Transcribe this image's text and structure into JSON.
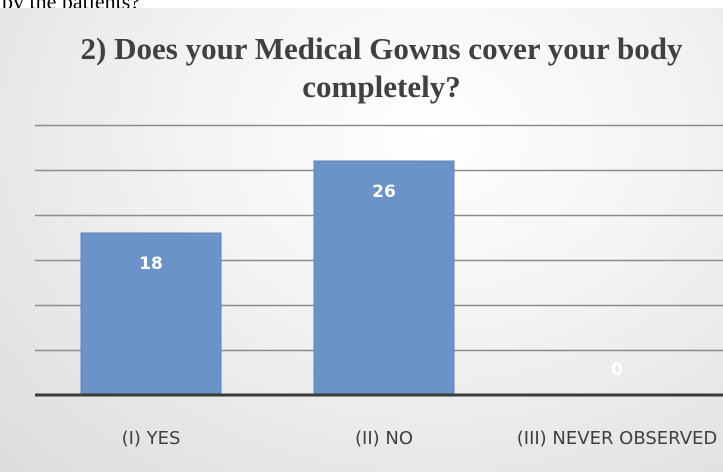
{
  "page": {
    "top_fragment": "by the patients?"
  },
  "chart_data": {
    "type": "bar",
    "title": "2) Does your Medical Gowns cover your body completely?",
    "xlabel": "",
    "ylabel": "",
    "categories": [
      "(I) YES",
      "(II) NO",
      "(III) NEVER OBSERVED"
    ],
    "values": [
      18,
      26,
      0
    ],
    "data_labels": [
      "18",
      "26",
      "0"
    ],
    "ylim": [
      0,
      30
    ],
    "grid": true,
    "legend": "none",
    "colors": {
      "bar": "#6b93c8",
      "bar_edge": "#5b84bb",
      "grid": "#8c8c8c",
      "axis": "#3a3a3a",
      "data_label": "#ffffff",
      "text": "#404040"
    }
  }
}
